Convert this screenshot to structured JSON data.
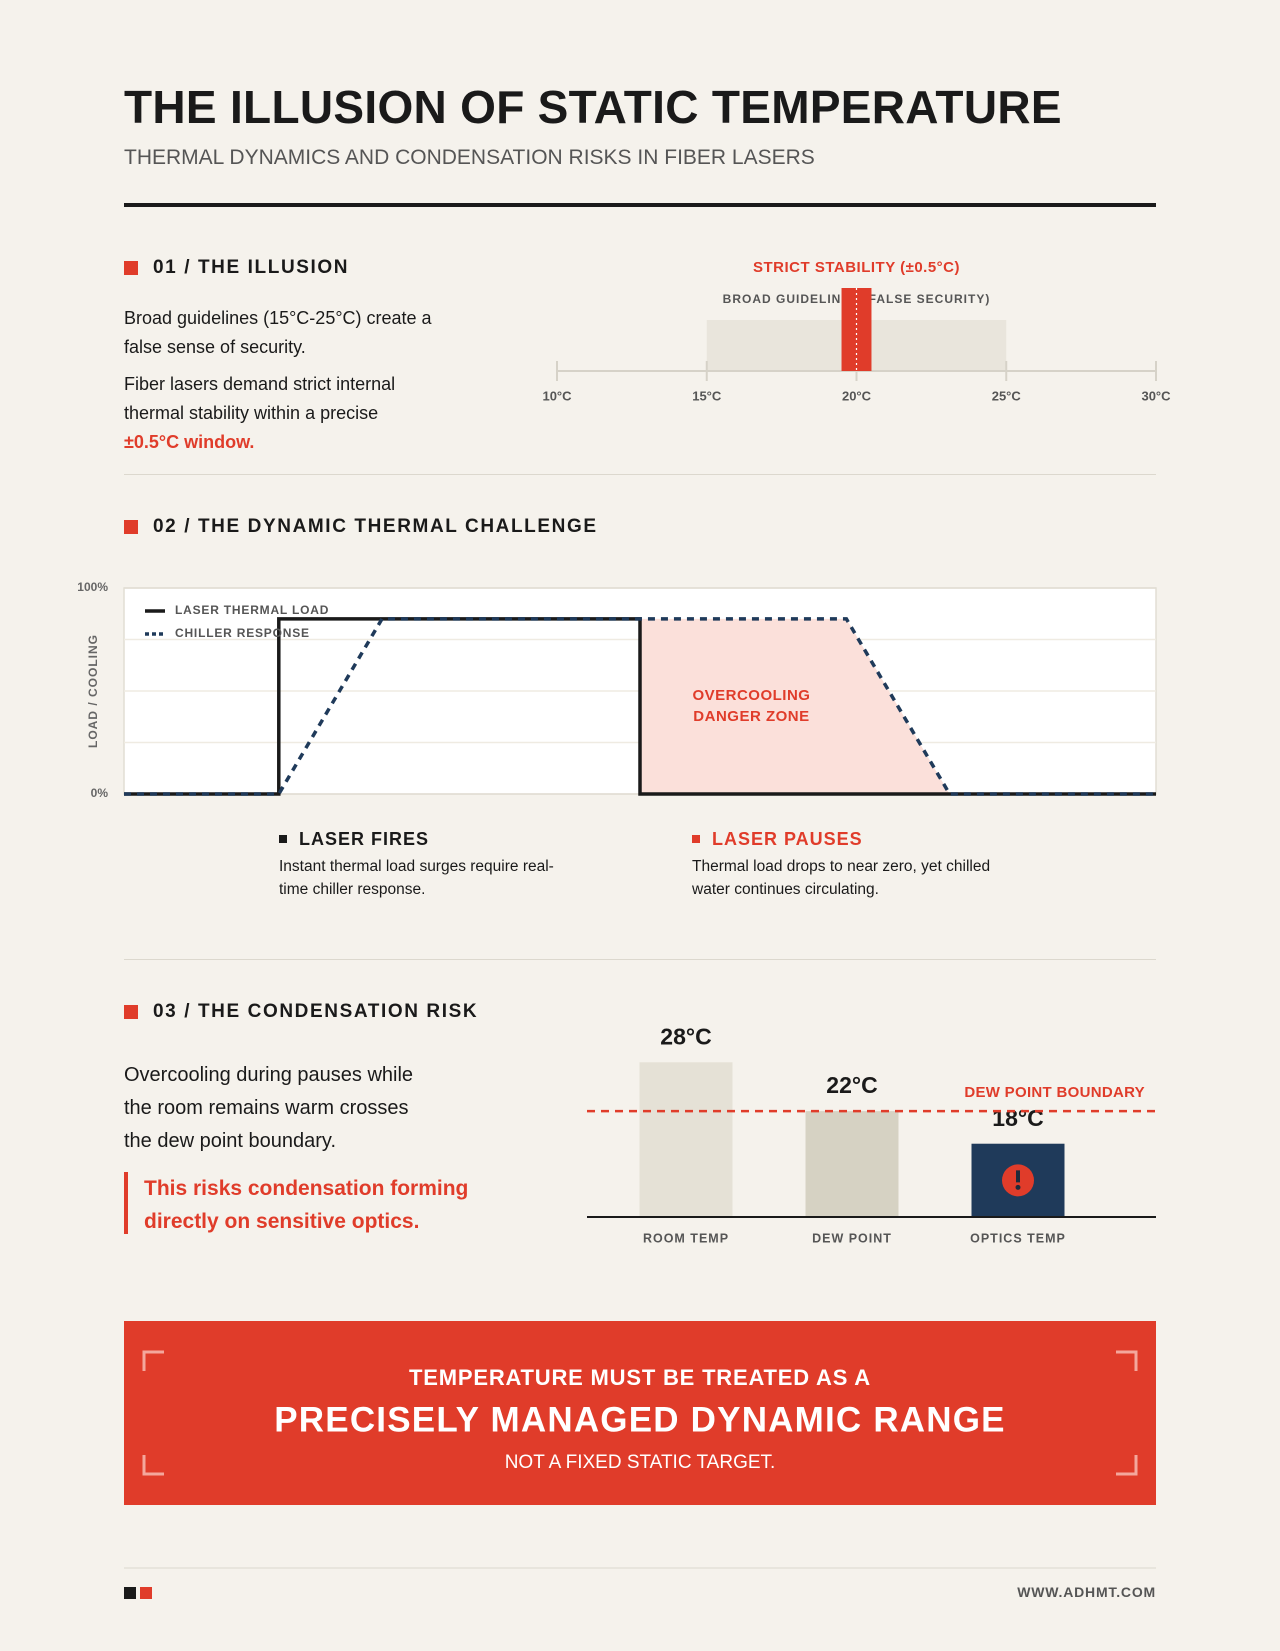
{
  "header": {
    "title": "THE ILLUSION OF STATIC TEMPERATURE",
    "subtitle": "THERMAL DYNAMICS AND CONDENSATION RISKS IN FIBER LASERS"
  },
  "illusion": {
    "heading": "01 / THE ILLUSION",
    "paragraphs": [
      "Broad guidelines (15°C-25°C) create a false sense of security.",
      "Fiber lasers demand strict internal thermal stability within a precise"
    ],
    "highlight": "±0.5°C window."
  },
  "challenge": {
    "heading": "02 / THE DYNAMIC THERMAL CHALLENGE",
    "notes": [
      {
        "title": "LASER FIRES",
        "text": "Instant thermal load surges require real-time chiller response.",
        "color": "#1a1a1a"
      },
      {
        "title": "LASER PAUSES",
        "text": "Thermal load drops to near zero, yet chilled water continues circulating.",
        "color": "#e03c2a"
      }
    ]
  },
  "condensation": {
    "heading": "03 / THE CONDENSATION RISK",
    "paragraph": "Overcooling during pauses while the room remains warm crosses the dew point boundary.",
    "quote": "This risks condensation forming directly on sensitive optics."
  },
  "callout": {
    "lead": "TEMPERATURE MUST BE TREATED AS A",
    "main": "PRECISELY MANAGED DYNAMIC RANGE",
    "tail": "NOT A FIXED STATIC TARGET."
  },
  "footer": {
    "url": "WWW.ADHMT.COM"
  },
  "chart_data": [
    {
      "type": "range",
      "xlim": [
        10,
        30
      ],
      "xticks": [
        {
          "value": 10,
          "label": "10°C"
        },
        {
          "value": 15,
          "label": "15°C"
        },
        {
          "value": 20,
          "label": "20°C"
        },
        {
          "value": 25,
          "label": "25°C"
        },
        {
          "value": 30,
          "label": "30°C"
        }
      ],
      "bands": [
        {
          "name": "BROAD GUIDELINES (FALSE SECURITY)",
          "range": [
            15,
            25
          ],
          "color": "#e9e5dc"
        },
        {
          "name": "STRICT STABILITY (±0.5°C)",
          "range": [
            19.5,
            20.5
          ],
          "color": "#e03c2a"
        }
      ],
      "target": 20
    },
    {
      "type": "line",
      "y_label": "LOAD / COOLING",
      "xlim": [
        0,
        100
      ],
      "ylim": [
        0,
        100
      ],
      "yticks": [
        {
          "value": 0,
          "label": "0%"
        },
        {
          "value": 100,
          "label": "100%"
        }
      ],
      "gridlines": [
        25,
        50,
        75
      ],
      "legend": "top-left",
      "series": [
        {
          "name": "LASER THERMAL LOAD",
          "color": "#1a1a1a",
          "style": "solid",
          "x": [
            0,
            15,
            15,
            50,
            50,
            100
          ],
          "values": [
            0,
            0,
            85,
            85,
            0,
            0
          ]
        },
        {
          "name": "CHILLER RESPONSE",
          "color": "#1f3a5a",
          "style": "dotted",
          "x": [
            0,
            15,
            25,
            70,
            80,
            100
          ],
          "values": [
            0,
            0,
            85,
            85,
            0,
            0
          ]
        }
      ],
      "zone": {
        "lines": [
          "OVERCOOLING",
          "DANGER ZONE"
        ],
        "x": [
          50,
          80
        ],
        "color": "#fbe0da"
      }
    },
    {
      "type": "bar",
      "categories": [
        "ROOM TEMP",
        "DEW POINT",
        "OPTICS TEMP"
      ],
      "values": [
        28,
        22,
        18
      ],
      "value_labels": [
        "28°C",
        "22°C",
        "18°C"
      ],
      "colors": [
        "#e5e1d6",
        "#d6d2c3",
        "#1f3a5a"
      ],
      "ylim": [
        9,
        30
      ],
      "reference": {
        "label": "DEW POINT BOUNDARY",
        "value": 22,
        "color": "#e03c2a"
      }
    }
  ]
}
